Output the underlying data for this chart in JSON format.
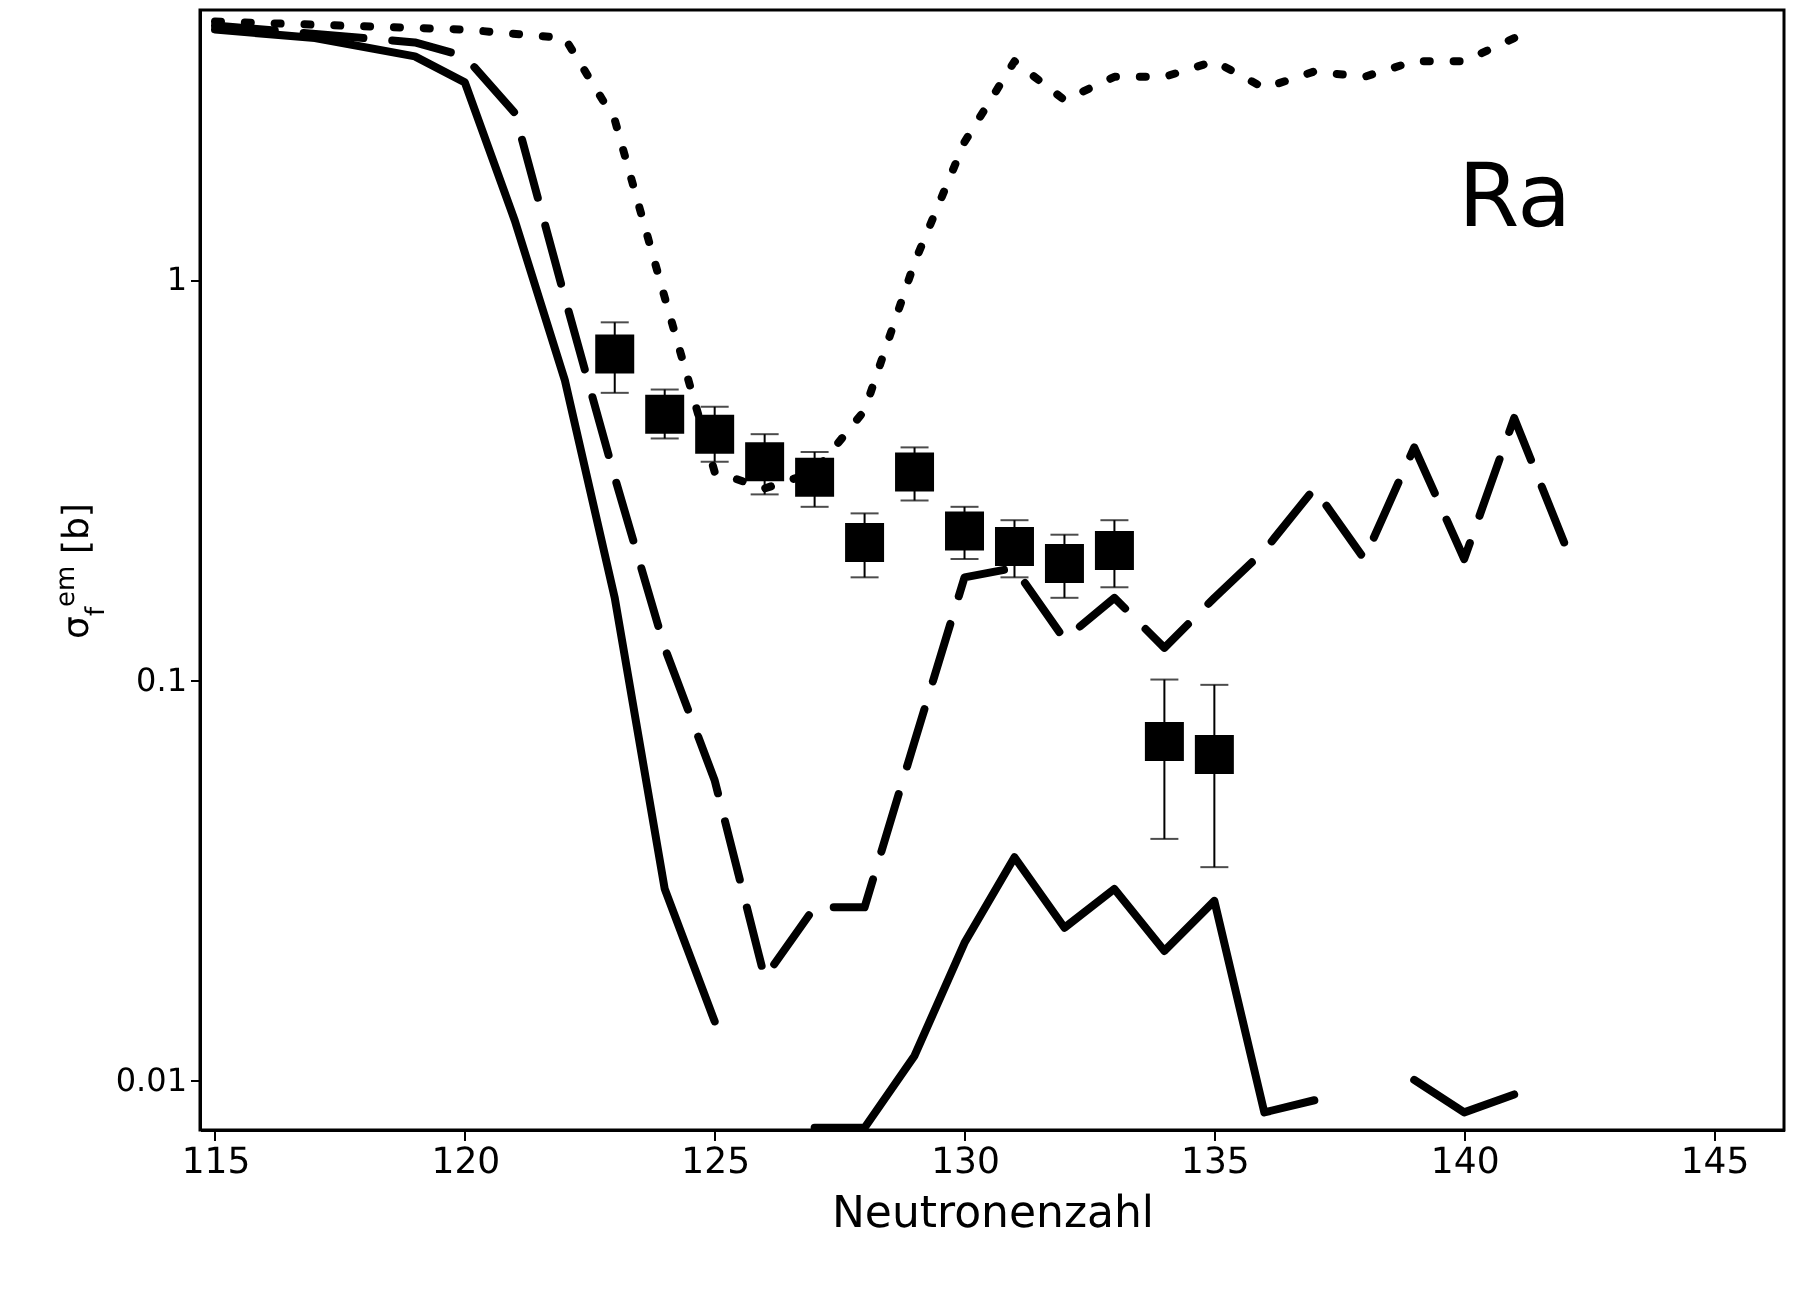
{
  "chart_data": {
    "type": "line",
    "xlabel": "Neutronenzahl",
    "ylabel": "σ$_{f}$$^{em}$ [b]",
    "annotations": [
      "Ra"
    ],
    "log": "y",
    "grid": false,
    "xlim": [
      114.7,
      146.4
    ],
    "xticks": [
      115,
      120,
      125,
      130,
      135,
      140,
      145
    ],
    "ylim": [
      0.0075,
      4.7
    ],
    "yticks": [
      0.01,
      0.1,
      1
    ],
    "series": [
      {
        "line_style": "solid",
        "color": "#000000",
        "x": [
          115,
          117,
          119,
          120,
          121,
          122,
          123,
          124,
          125,
          125.6,
          127,
          128,
          129,
          130,
          131,
          132,
          133,
          134,
          135,
          136,
          137,
          137.4,
          138.6,
          139,
          140,
          141
        ],
        "values": [
          4.2,
          4.0,
          3.6,
          3.1,
          1.4,
          0.56,
          0.16,
          0.03,
          0.014,
          null,
          0.0076,
          0.0076,
          0.0115,
          0.022,
          0.036,
          0.024,
          0.03,
          0.021,
          0.028,
          0.0083,
          0.0089,
          null,
          null,
          0.01,
          0.0083,
          0.0092
        ]
      },
      {
        "line_style": "dashed",
        "color": "#000000",
        "x": [
          115,
          119,
          120,
          121,
          122,
          123,
          124,
          125,
          126,
          127,
          128,
          129,
          130,
          131,
          132,
          133,
          134,
          135,
          136,
          137,
          138,
          139,
          140,
          141,
          142
        ],
        "values": [
          4.3,
          3.9,
          3.6,
          2.6,
          0.9,
          0.32,
          0.12,
          0.056,
          0.018,
          0.027,
          0.027,
          0.07,
          0.18,
          0.19,
          0.126,
          0.16,
          0.12,
          0.16,
          0.21,
          0.3,
          0.2,
          0.38,
          0.2,
          0.45,
          0.22
        ]
      },
      {
        "line_style": "dotted",
        "color": "#000000",
        "x": [
          115,
          120,
          122,
          123,
          124,
          125,
          126,
          127,
          128,
          129,
          130,
          131,
          132,
          133,
          134,
          135,
          136,
          137,
          138,
          139,
          140,
          141
        ],
        "values": [
          4.4,
          4.2,
          4.0,
          2.5,
          0.9,
          0.33,
          0.3,
          0.33,
          0.47,
          1.1,
          2.2,
          3.5,
          2.8,
          3.2,
          3.2,
          3.5,
          3.0,
          3.3,
          3.2,
          3.5,
          3.5,
          4.0
        ]
      },
      {
        "type": "scatter",
        "marker": "square",
        "color": "#000000",
        "x": [
          123,
          124,
          125,
          126,
          127,
          128,
          129,
          130,
          131,
          132,
          133,
          134,
          135
        ],
        "values": [
          0.65,
          0.46,
          0.41,
          0.35,
          0.32,
          0.22,
          0.33,
          0.235,
          0.215,
          0.195,
          0.21,
          0.07,
          0.065
        ],
        "errors": [
          [
            0.52,
            0.78
          ],
          [
            0.4,
            0.53
          ],
          [
            0.35,
            0.48
          ],
          [
            0.29,
            0.41
          ],
          [
            0.27,
            0.37
          ],
          [
            0.18,
            0.26
          ],
          [
            0.28,
            0.38
          ],
          [
            0.2,
            0.27
          ],
          [
            0.18,
            0.25
          ],
          [
            0.16,
            0.23
          ],
          [
            0.17,
            0.25
          ],
          [
            0.04,
            0.1
          ],
          [
            0.034,
            0.097
          ]
        ]
      }
    ]
  }
}
